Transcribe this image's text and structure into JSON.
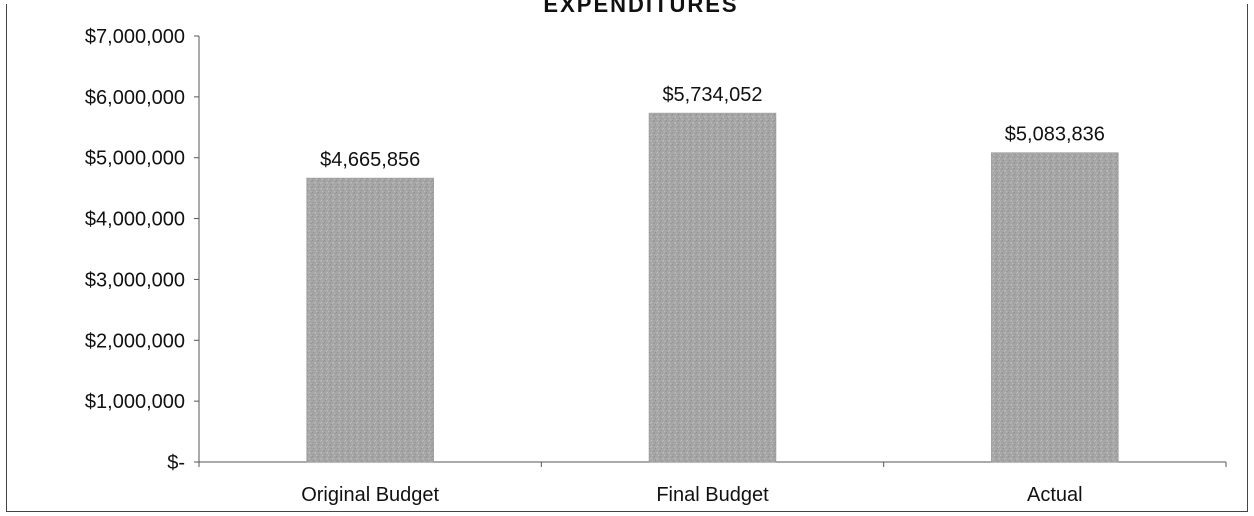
{
  "chart_data": {
    "type": "bar",
    "title": "EXPENDITURES",
    "categories": [
      "Original Budget",
      "Final Budget",
      "Actual"
    ],
    "values": [
      4665856,
      5734052,
      5083836
    ],
    "data_labels": [
      "$4,665,856",
      "$5,734,052",
      "$5,083,836"
    ],
    "ylim": [
      0,
      7000000
    ],
    "yticks": [
      0,
      1000000,
      2000000,
      3000000,
      4000000,
      5000000,
      6000000,
      7000000
    ],
    "ytick_labels": [
      "$-",
      "$1,000,000",
      "$2,000,000",
      "$3,000,000",
      "$4,000,000",
      "$5,000,000",
      "$6,000,000",
      "$7,000,000"
    ],
    "xlabel": "",
    "ylabel": "",
    "grid": false,
    "legend": "none",
    "bar_color": "#a9a9a9"
  }
}
